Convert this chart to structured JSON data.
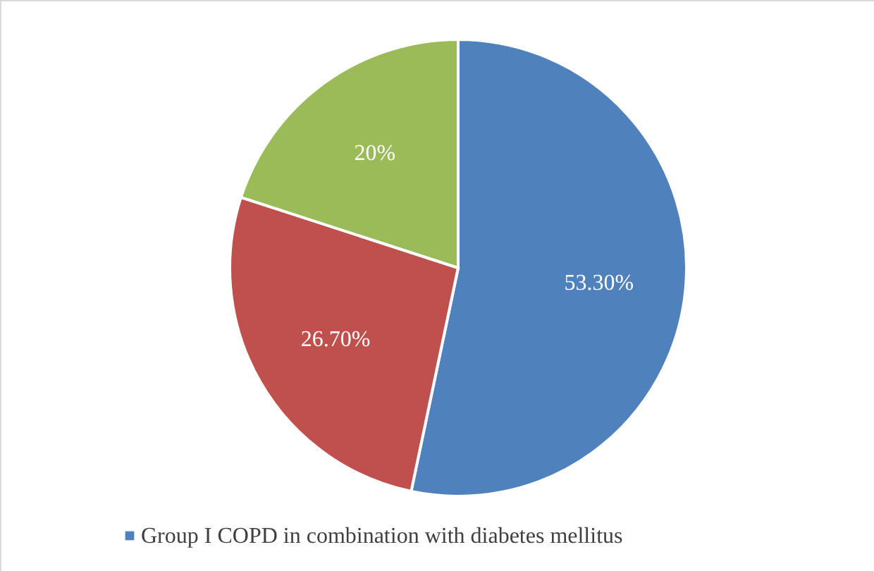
{
  "chart_data": {
    "type": "pie",
    "categories": [
      "Group I COPD in combination with diabetes mellitus",
      null,
      null
    ],
    "values": [
      53.3,
      26.7,
      20
    ],
    "colors": [
      "#4f81bd",
      "#c0504d",
      "#9bbb59"
    ],
    "value_labels": [
      "53.30%",
      "26.70%",
      "20%"
    ],
    "legend": "bottom"
  }
}
